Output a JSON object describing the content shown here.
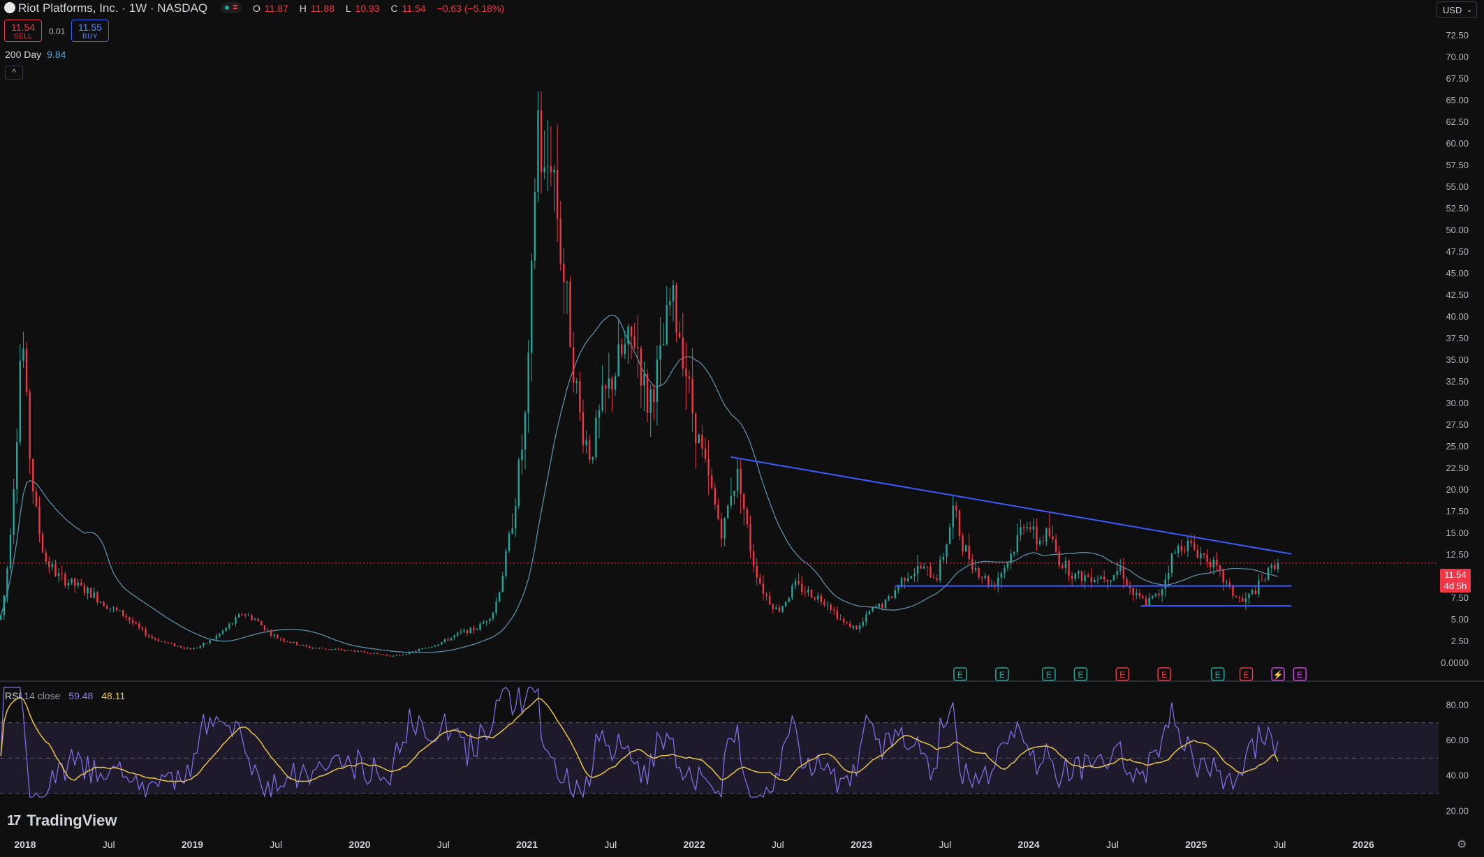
{
  "header": {
    "title": "Riot Platforms, Inc. · 1W · NASDAQ",
    "ohlc": {
      "o_label": "O",
      "o": "11.87",
      "h_label": "H",
      "h": "11.88",
      "l_label": "L",
      "l": "10.93",
      "c_label": "C",
      "c": "11.54",
      "change": "−0.63 (−5.18%)"
    },
    "sell_price": "11.54",
    "sell_label": "SELL",
    "spread": "0.01",
    "buy_price": "11.55",
    "buy_label": "BUY",
    "ma_label": "200 Day",
    "ma_value": "9.84",
    "currency": "USD"
  },
  "price_tag": {
    "price": "11.54",
    "countdown": "4d 5h"
  },
  "rsi": {
    "label": "RSI",
    "params": "14 close",
    "value": "59.48",
    "ma_value": "48.11"
  },
  "branding": {
    "logo_text": "TradingView",
    "logo_mark": "17"
  },
  "colors": {
    "up": "#26a69a",
    "down": "#f23645",
    "ma": "#5b8fa8",
    "trend": "#3d5afe",
    "rsi": "#7e6ee0",
    "rsi_ma": "#e8c547",
    "background": "#0f0f0f"
  },
  "earnings_markers": [
    {
      "label": "E",
      "color": "#26a69a"
    },
    {
      "label": "E",
      "color": "#26a69a"
    },
    {
      "label": "E",
      "color": "#26a69a"
    },
    {
      "label": "E",
      "color": "#26a69a"
    },
    {
      "label": "E",
      "color": "#f23645"
    },
    {
      "label": "E",
      "color": "#f23645"
    },
    {
      "label": "E",
      "color": "#26a69a"
    },
    {
      "label": "E",
      "color": "#f23645"
    },
    {
      "label": "⚡",
      "color": "#c847e0"
    },
    {
      "label": "E",
      "color": "#c847e0"
    }
  ],
  "chart_data": {
    "type": "candlestick",
    "price_axis": {
      "labels": [
        "72.50",
        "70.00",
        "67.50",
        "65.00",
        "62.50",
        "60.00",
        "57.50",
        "55.00",
        "52.50",
        "50.00",
        "47.50",
        "45.00",
        "42.50",
        "40.00",
        "37.50",
        "35.00",
        "32.50",
        "30.00",
        "27.50",
        "25.00",
        "22.50",
        "20.00",
        "17.50",
        "15.00",
        "12.50",
        "10.00",
        "7.50",
        "5.00",
        "2.50",
        "0.0000"
      ],
      "ylim": [
        0,
        75
      ]
    },
    "time_axis": {
      "labels": [
        "2018",
        "Jul",
        "2019",
        "Jul",
        "2020",
        "Jul",
        "2021",
        "Jul",
        "2022",
        "Jul",
        "2023",
        "Jul",
        "2024",
        "Jul",
        "2025",
        "Jul",
        "2026"
      ],
      "xlim": [
        2017.85,
        2026.45
      ]
    },
    "rsi_axis": {
      "labels": [
        "80.00",
        "60.00",
        "40.00",
        "20.00"
      ],
      "ylim": [
        15,
        90
      ],
      "bands": [
        70,
        50,
        30
      ]
    },
    "price_anchors": [
      [
        2017.85,
        5
      ],
      [
        2017.92,
        18
      ],
      [
        2017.98,
        40
      ],
      [
        2018.02,
        26
      ],
      [
        2018.06,
        18
      ],
      [
        2018.12,
        12
      ],
      [
        2018.2,
        10
      ],
      [
        2018.3,
        9
      ],
      [
        2018.4,
        8
      ],
      [
        2018.5,
        6.5
      ],
      [
        2018.6,
        5.5
      ],
      [
        2018.75,
        3
      ],
      [
        2018.9,
        2
      ],
      [
        2019.0,
        1.6
      ],
      [
        2019.1,
        2.5
      ],
      [
        2019.2,
        4
      ],
      [
        2019.3,
        5.8
      ],
      [
        2019.38,
        5
      ],
      [
        2019.5,
        3
      ],
      [
        2019.7,
        1.8
      ],
      [
        2019.9,
        1.5
      ],
      [
        2020.05,
        1.2
      ],
      [
        2020.2,
        0.8
      ],
      [
        2020.35,
        1.5
      ],
      [
        2020.5,
        2.5
      ],
      [
        2020.6,
        3.5
      ],
      [
        2020.7,
        4
      ],
      [
        2020.8,
        6
      ],
      [
        2020.85,
        10
      ],
      [
        2020.9,
        15
      ],
      [
        2020.95,
        22
      ],
      [
        2021.0,
        30
      ],
      [
        2021.03,
        45
      ],
      [
        2021.06,
        65
      ],
      [
        2021.1,
        55
      ],
      [
        2021.15,
        60
      ],
      [
        2021.2,
        48
      ],
      [
        2021.25,
        40
      ],
      [
        2021.32,
        28
      ],
      [
        2021.38,
        24
      ],
      [
        2021.45,
        30
      ],
      [
        2021.55,
        35
      ],
      [
        2021.65,
        38
      ],
      [
        2021.72,
        30
      ],
      [
        2021.8,
        35
      ],
      [
        2021.86,
        42
      ],
      [
        2021.92,
        38
      ],
      [
        2022.0,
        28
      ],
      [
        2022.1,
        20
      ],
      [
        2022.17,
        15
      ],
      [
        2022.22,
        20
      ],
      [
        2022.27,
        22
      ],
      [
        2022.35,
        12
      ],
      [
        2022.42,
        8
      ],
      [
        2022.5,
        6
      ],
      [
        2022.6,
        9
      ],
      [
        2022.7,
        8
      ],
      [
        2022.8,
        7
      ],
      [
        2022.9,
        4.5
      ],
      [
        2022.98,
        4
      ],
      [
        2023.05,
        6
      ],
      [
        2023.15,
        7
      ],
      [
        2023.25,
        10
      ],
      [
        2023.35,
        11
      ],
      [
        2023.45,
        10
      ],
      [
        2023.55,
        18
      ],
      [
        2023.6,
        14
      ],
      [
        2023.68,
        11
      ],
      [
        2023.78,
        9
      ],
      [
        2023.88,
        12
      ],
      [
        2023.98,
        17
      ],
      [
        2024.05,
        14
      ],
      [
        2024.12,
        15
      ],
      [
        2024.18,
        12
      ],
      [
        2024.28,
        10
      ],
      [
        2024.38,
        10
      ],
      [
        2024.48,
        10
      ],
      [
        2024.55,
        11
      ],
      [
        2024.62,
        8
      ],
      [
        2024.7,
        7
      ],
      [
        2024.78,
        8
      ],
      [
        2024.85,
        12
      ],
      [
        2024.92,
        14
      ],
      [
        2025.0,
        13
      ],
      [
        2025.08,
        12
      ],
      [
        2025.15,
        10
      ],
      [
        2025.22,
        8
      ],
      [
        2025.28,
        7
      ],
      [
        2025.33,
        8
      ],
      [
        2025.4,
        9.5
      ],
      [
        2025.47,
        11.5
      ],
      [
        2025.5,
        11.54
      ]
    ],
    "overlays": {
      "ma_200_day": {
        "label": "200 Day",
        "value": 9.84
      },
      "descending_trendline": {
        "from": [
          2022.22,
          23.8
        ],
        "to": [
          2025.57,
          12.6
        ]
      },
      "support_line_1": {
        "from": [
          2023.2,
          8.9
        ],
        "to": [
          2025.57,
          8.9
        ]
      },
      "support_line_2": {
        "from": [
          2024.67,
          6.6
        ],
        "to": [
          2025.57,
          6.6
        ]
      },
      "last_price_line": 11.54
    }
  }
}
